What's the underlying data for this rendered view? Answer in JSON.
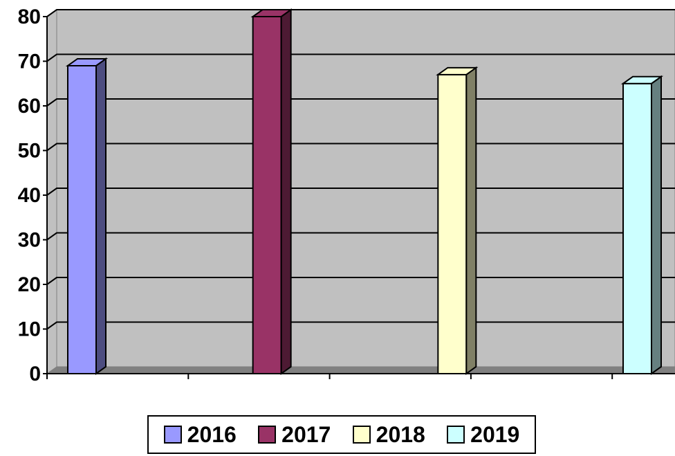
{
  "chart_data": {
    "type": "bar",
    "title": "",
    "xlabel": "",
    "ylabel": "",
    "ylim": [
      0,
      80
    ],
    "yticks": [
      "0",
      "10",
      "20",
      "30",
      "40",
      "50",
      "60",
      "70",
      "80"
    ],
    "grid": true,
    "legend_position": "bottom",
    "plot_background": "#c0c0c0",
    "series": [
      {
        "name": "2016",
        "values": [
          69
        ],
        "color": "#9999ff",
        "side_color": "#4d4d80"
      },
      {
        "name": "2017",
        "values": [
          80
        ],
        "color": "#993366",
        "side_color": "#4d1a33"
      },
      {
        "name": "2018",
        "values": [
          67
        ],
        "color": "#ffffcc",
        "side_color": "#808066"
      },
      {
        "name": "2019",
        "values": [
          65
        ],
        "color": "#ccffff",
        "side_color": "#668080"
      }
    ]
  }
}
